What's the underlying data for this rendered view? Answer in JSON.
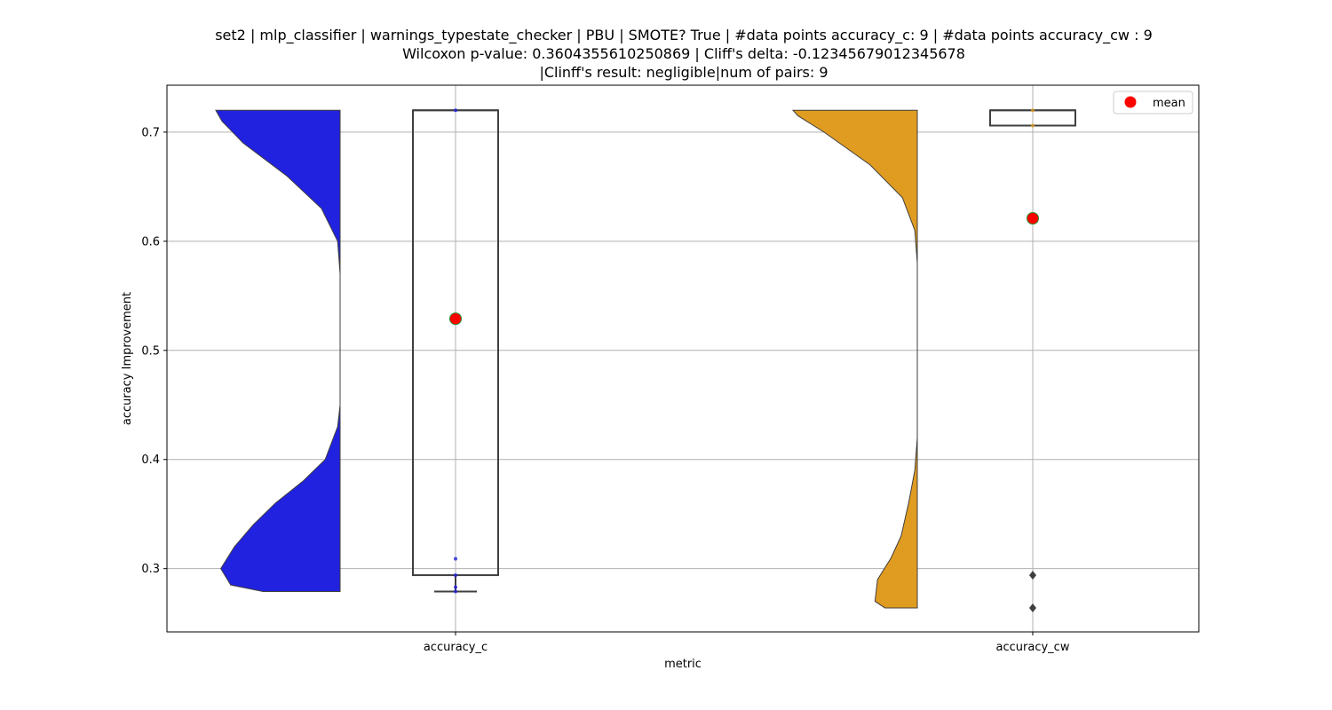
{
  "chart_data": {
    "type": "violin",
    "title_lines": [
      "set2 | mlp_classifier | warnings_typestate_checker | PBU | SMOTE? True | #data points accuracy_c: 9 | #data points accuracy_cw : 9",
      "Wilcoxon p-value: 0.3604355610250869 | Cliff's delta: -0.12345679012345678",
      "|Clinff's result: negligible|num of pairs: 9"
    ],
    "xlabel": "metric",
    "ylabel": "accuracy Improvement",
    "categories": [
      "accuracy_c",
      "accuracy_cw"
    ],
    "ylim": [
      0.242,
      0.743
    ],
    "yticks": [
      0.3,
      0.4,
      0.5,
      0.6,
      0.7
    ],
    "ytick_labels": [
      "0.3",
      "0.4",
      "0.5",
      "0.6",
      "0.7"
    ],
    "grid": true,
    "legend": {
      "placement": "top-right",
      "entries": [
        {
          "label": "mean",
          "color": "#ff0000"
        }
      ]
    },
    "series": [
      {
        "category": "accuracy_c",
        "color": "#2121e0",
        "violin_range": [
          0.279,
          0.72
        ],
        "violin_density": [
          [
            0.279,
            0.62
          ],
          [
            0.285,
            0.88
          ],
          [
            0.3,
            0.96
          ],
          [
            0.32,
            0.85
          ],
          [
            0.34,
            0.7
          ],
          [
            0.36,
            0.52
          ],
          [
            0.38,
            0.3
          ],
          [
            0.4,
            0.12
          ],
          [
            0.43,
            0.02
          ],
          [
            0.45,
            0.0
          ],
          [
            0.57,
            0.0
          ],
          [
            0.6,
            0.02
          ],
          [
            0.63,
            0.15
          ],
          [
            0.66,
            0.43
          ],
          [
            0.69,
            0.78
          ],
          [
            0.71,
            0.95
          ],
          [
            0.72,
            1.0
          ]
        ],
        "box": {
          "whisker_low": 0.279,
          "q1": 0.294,
          "median": 0.72,
          "q3": 0.72,
          "whisker_high": 0.72
        },
        "points": [
          0.72,
          0.309,
          0.294,
          0.283,
          0.279
        ],
        "mean": 0.529
      },
      {
        "category": "accuracy_cw",
        "color": "#e09c21",
        "violin_range": [
          0.264,
          0.72
        ],
        "violin_density": [
          [
            0.264,
            0.26
          ],
          [
            0.27,
            0.34
          ],
          [
            0.29,
            0.32
          ],
          [
            0.31,
            0.21
          ],
          [
            0.33,
            0.13
          ],
          [
            0.36,
            0.07
          ],
          [
            0.39,
            0.02
          ],
          [
            0.42,
            0.0
          ],
          [
            0.58,
            0.0
          ],
          [
            0.61,
            0.02
          ],
          [
            0.64,
            0.12
          ],
          [
            0.67,
            0.38
          ],
          [
            0.7,
            0.75
          ],
          [
            0.715,
            0.96
          ],
          [
            0.72,
            1.0
          ]
        ],
        "box": {
          "whisker_low": 0.706,
          "q1": 0.706,
          "median": 0.72,
          "q3": 0.72,
          "whisker_high": 0.72
        },
        "outliers": [
          0.294,
          0.264
        ],
        "points": [
          0.72,
          0.706
        ],
        "mean": 0.621
      }
    ]
  }
}
